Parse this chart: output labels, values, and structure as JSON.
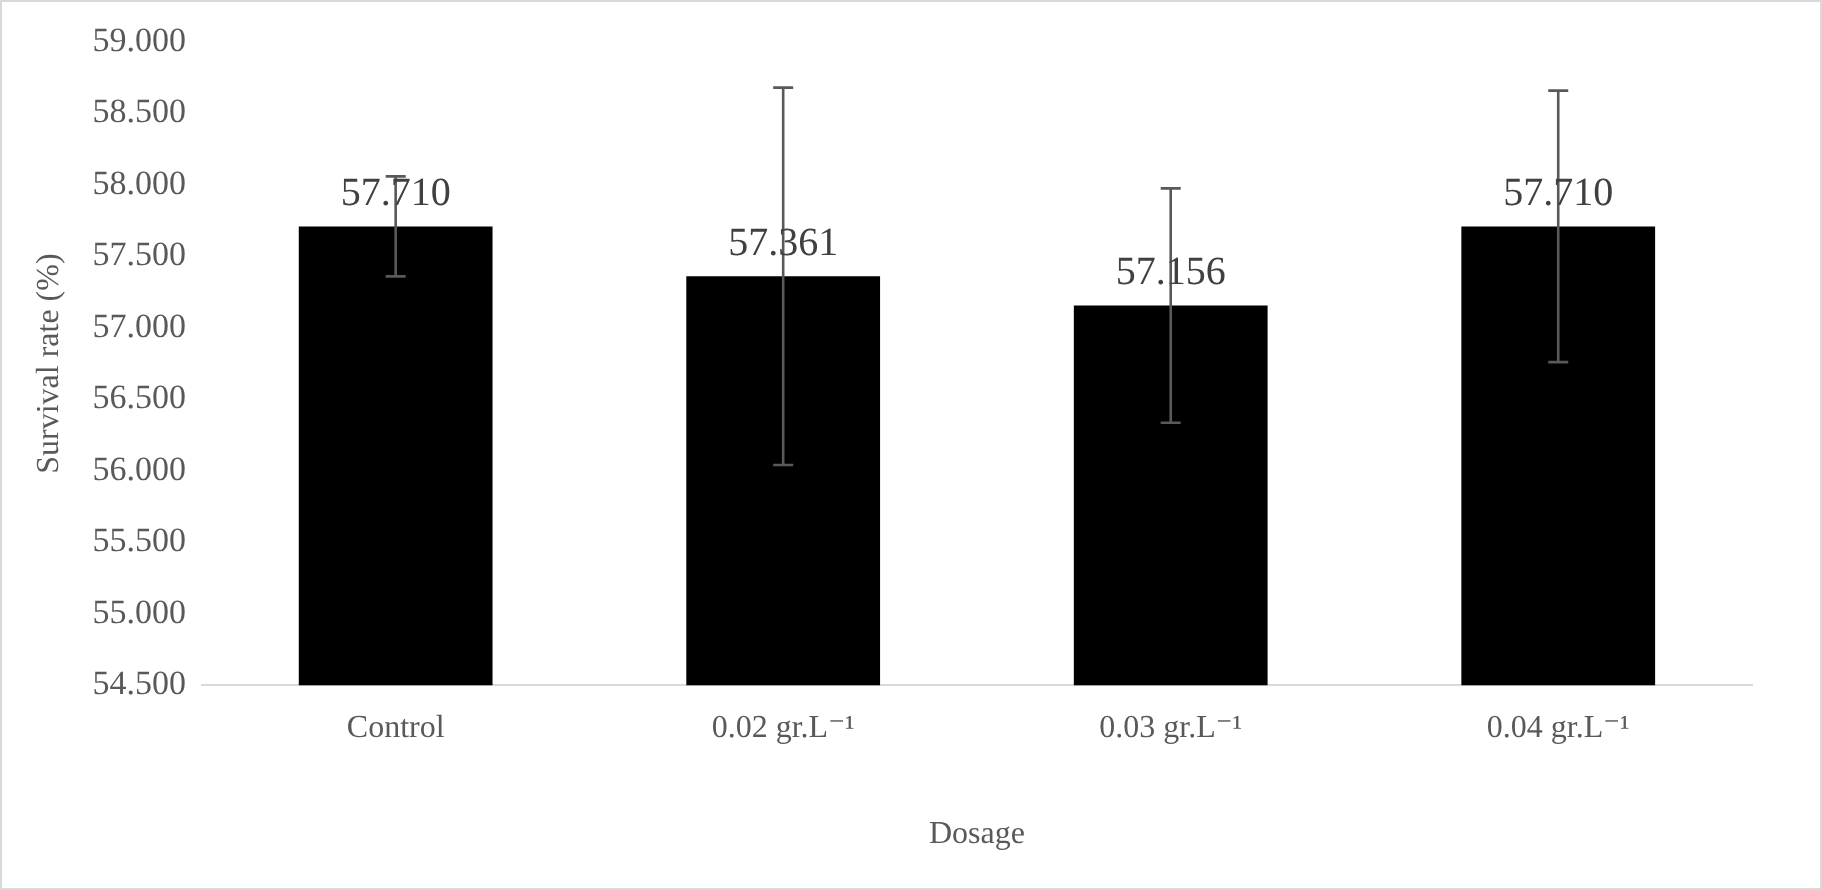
{
  "chart_data": {
    "type": "bar",
    "xlabel": "Dosage",
    "ylabel": "Survival rate (%)",
    "categories": [
      "Control",
      "0.02 gr.L⁻¹",
      "0.03 gr.L⁻¹",
      "0.04 gr.L⁻¹"
    ],
    "values": [
      57.71,
      57.361,
      57.156,
      57.71
    ],
    "value_labels": [
      "57.710",
      "57.361",
      "57.156",
      "57.710"
    ],
    "errors": [
      0.35,
      1.32,
      0.82,
      0.95
    ],
    "color": "#000000",
    "ylim": [
      54.5,
      59
    ],
    "yticks": [
      {
        "value": 54.5,
        "label": "54.500"
      },
      {
        "value": 55,
        "label": "55.000"
      },
      {
        "value": 55.5,
        "label": "55.500"
      },
      {
        "value": 56,
        "label": "56.000"
      },
      {
        "value": 56.5,
        "label": "56.500"
      },
      {
        "value": 57,
        "label": "57.000"
      },
      {
        "value": 57.5,
        "label": "57.500"
      },
      {
        "value": 58,
        "label": "58.000"
      },
      {
        "value": 58.5,
        "label": "58.500"
      },
      {
        "value": 59,
        "label": "59.000"
      }
    ],
    "grid": false,
    "legend": false
  }
}
